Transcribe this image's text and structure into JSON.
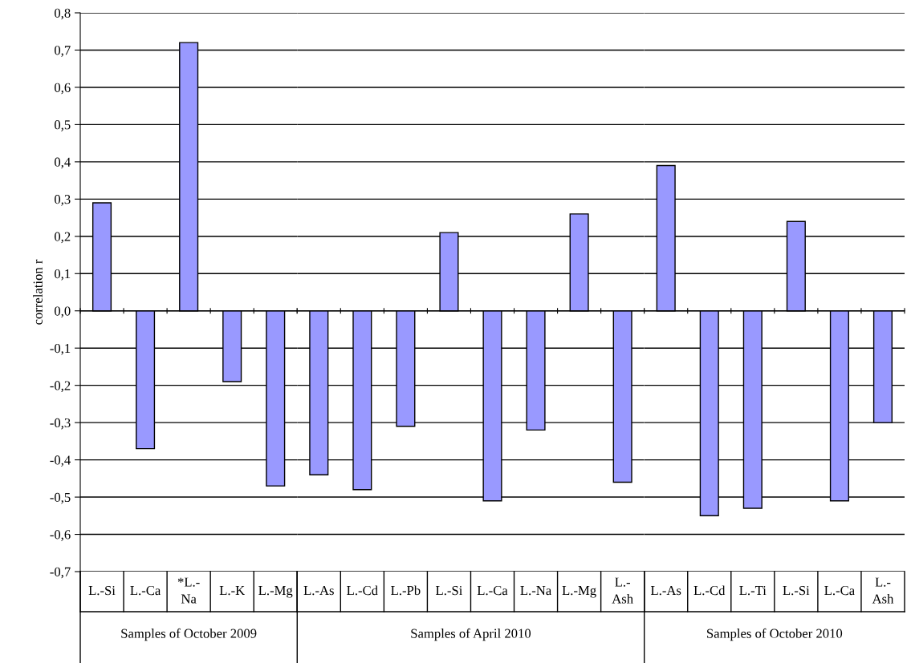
{
  "chart_data": [
    {
      "type": "bar",
      "ylabel": "correlation r",
      "xlabel": "Samples of October 2009",
      "categories": [
        "L.-Si",
        "L.-Ca",
        "*L.-Na",
        "L.-K",
        "L.-Mg"
      ],
      "values": [
        0.29,
        -0.37,
        0.72,
        -0.19,
        -0.47
      ],
      "color": "#9999ff",
      "ylim": [
        -0.7,
        0.8
      ],
      "yticks": [
        {
          "value": -0.7,
          "label": "-0,7"
        },
        {
          "value": -0.6,
          "label": "-0,6"
        },
        {
          "value": -0.5,
          "label": "-0,5"
        },
        {
          "value": -0.4,
          "label": "-0,4"
        },
        {
          "value": -0.3,
          "label": "-0,3"
        },
        {
          "value": -0.2,
          "label": "-0,2"
        },
        {
          "value": -0.1,
          "label": "-0,1"
        },
        {
          "value": 0,
          "label": "0,0"
        },
        {
          "value": 0.1,
          "label": "0,1"
        },
        {
          "value": 0.2,
          "label": "0,2"
        },
        {
          "value": 0.3,
          "label": "0,3"
        },
        {
          "value": 0.4,
          "label": "0,4"
        },
        {
          "value": 0.5,
          "label": "0,5"
        },
        {
          "value": 0.6,
          "label": "0,6"
        },
        {
          "value": 0.7,
          "label": "0,7"
        },
        {
          "value": 0.8,
          "label": "0,8"
        }
      ],
      "grid": "y"
    },
    {
      "type": "bar",
      "xlabel": "Samples of April 2010",
      "categories": [
        "L.-As",
        "L.-Cd",
        "L.-Pb",
        "L.-Si",
        "L.-Ca",
        "L.-Na",
        "L.-Mg",
        "L.-Ash"
      ],
      "values": [
        -0.44,
        -0.48,
        -0.31,
        0.21,
        -0.51,
        -0.32,
        0.26,
        -0.46
      ],
      "color": "#9999ff",
      "ylim": [
        -0.7,
        0.8
      ],
      "yticks": [
        -0.7,
        -0.6,
        -0.5,
        -0.4,
        -0.3,
        -0.2,
        -0.1,
        0,
        0.1,
        0.2,
        0.3,
        0.4,
        0.5,
        0.6,
        0.7,
        0.8
      ],
      "grid": "y",
      "tick_labels": "x"
    },
    {
      "type": "bar",
      "xlabel": "Samples of October 2010",
      "categories": [
        "L.-As",
        "L.-Cd",
        "L.-Ti",
        "L.-Si",
        "L.-Ca",
        "L.-Ash"
      ],
      "values": [
        0.39,
        -0.55,
        -0.53,
        0.24,
        -0.51,
        -0.3
      ],
      "color": "#9999ff",
      "ylim": [
        -0.7,
        0.8
      ],
      "yticks": [
        -0.7,
        -0.6,
        -0.5,
        -0.4,
        -0.3,
        -0.2,
        -0.1,
        0,
        0.1,
        0.2,
        0.3,
        0.4,
        0.5,
        0.6,
        0.7,
        0.8
      ],
      "grid": "y",
      "tick_labels": "x"
    }
  ]
}
